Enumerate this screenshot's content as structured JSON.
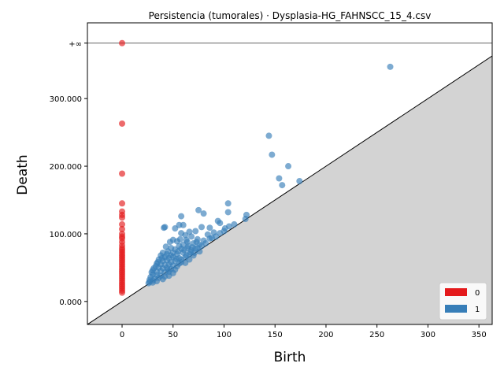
{
  "chart_data": {
    "type": "scatter",
    "title": "Persistencia (tumorales) · Dysplasia-HG_FAHNSCC_15_4.csv",
    "xlabel": "Birth",
    "ylabel": "Death",
    "xlim": [
      -34,
      363
    ],
    "ylim": [
      -34000,
      412000
    ],
    "infinity_value": 382000,
    "infinity_label": "+∞",
    "x_ticks": [
      {
        "value": 0,
        "label": "0"
      },
      {
        "value": 50,
        "label": "50"
      },
      {
        "value": 100,
        "label": "100"
      },
      {
        "value": 150,
        "label": "150"
      },
      {
        "value": 200,
        "label": "200"
      },
      {
        "value": 250,
        "label": "250"
      },
      {
        "value": 300,
        "label": "300"
      },
      {
        "value": 350,
        "label": "350"
      }
    ],
    "y_ticks": [
      {
        "value": 0,
        "label": "0.000"
      },
      {
        "value": 100000,
        "label": "100.000"
      },
      {
        "value": 200000,
        "label": "200.000"
      },
      {
        "value": 300000,
        "label": "300.000"
      }
    ],
    "legend": {
      "position": "lower-right",
      "items": [
        {
          "label": "0",
          "color": "#e41a1c"
        },
        {
          "label": "1",
          "color": "#377eb8"
        }
      ]
    },
    "series": [
      {
        "name": "0",
        "color": "#e41a1c",
        "points": [
          [
            0,
            382000
          ],
          [
            0,
            263000
          ],
          [
            0,
            189000
          ],
          [
            0,
            145000
          ],
          [
            0,
            133000
          ],
          [
            0,
            128000
          ],
          [
            0,
            124000
          ],
          [
            0,
            114000
          ],
          [
            0,
            107000
          ],
          [
            0,
            100000
          ],
          [
            0,
            96000
          ],
          [
            0,
            93000
          ],
          [
            0,
            88000
          ],
          [
            0,
            83000
          ],
          [
            0,
            79000
          ],
          [
            0,
            76000
          ],
          [
            0,
            73000
          ],
          [
            0,
            70000
          ],
          [
            0,
            67000
          ],
          [
            0,
            64000
          ],
          [
            0,
            61000
          ],
          [
            0,
            58000
          ],
          [
            0,
            55000
          ],
          [
            0,
            52000
          ],
          [
            0,
            49000
          ],
          [
            0,
            46000
          ],
          [
            0,
            43000
          ],
          [
            0,
            40000
          ],
          [
            0,
            37000
          ],
          [
            0,
            34000
          ],
          [
            0,
            31000
          ],
          [
            0,
            28000
          ],
          [
            0,
            25000
          ],
          [
            0,
            22000
          ],
          [
            0,
            19000
          ],
          [
            0,
            16000
          ],
          [
            0,
            13000
          ]
        ]
      },
      {
        "name": "1",
        "color": "#377eb8",
        "points": [
          [
            263,
            347000
          ],
          [
            144,
            245000
          ],
          [
            147,
            217000
          ],
          [
            163,
            200000
          ],
          [
            154,
            182000
          ],
          [
            157,
            172000
          ],
          [
            174,
            178000
          ],
          [
            104,
            145000
          ],
          [
            75,
            135000
          ],
          [
            80,
            130000
          ],
          [
            104,
            132000
          ],
          [
            58,
            126000
          ],
          [
            122,
            128000
          ],
          [
            121,
            122000
          ],
          [
            56,
            113000
          ],
          [
            60,
            113000
          ],
          [
            42,
            110000
          ],
          [
            41,
            109000
          ],
          [
            52,
            108000
          ],
          [
            78,
            110000
          ],
          [
            86,
            109000
          ],
          [
            105,
            111000
          ],
          [
            110,
            114000
          ],
          [
            94,
            119000
          ],
          [
            96,
            116000
          ],
          [
            101,
            108000
          ],
          [
            90,
            102000
          ],
          [
            72,
            104000
          ],
          [
            66,
            103000
          ],
          [
            58,
            101000
          ],
          [
            62,
            98000
          ],
          [
            68,
            96000
          ],
          [
            84,
            99000
          ],
          [
            88,
            94000
          ],
          [
            92,
            96000
          ],
          [
            100,
            104000
          ],
          [
            74,
            92000
          ],
          [
            80,
            90000
          ],
          [
            50,
            91000
          ],
          [
            54,
            89000
          ],
          [
            47,
            88000
          ],
          [
            64,
            88000
          ],
          [
            70,
            86000
          ],
          [
            76,
            84000
          ],
          [
            82,
            86000
          ],
          [
            60,
            84000
          ],
          [
            56,
            82000
          ],
          [
            43,
            81000
          ],
          [
            48,
            79000
          ],
          [
            52,
            77000
          ],
          [
            58,
            78000
          ],
          [
            64,
            79000
          ],
          [
            68,
            76000
          ],
          [
            72,
            78000
          ],
          [
            76,
            74000
          ],
          [
            40,
            72000
          ],
          [
            44,
            70000
          ],
          [
            50,
            72000
          ],
          [
            54,
            70000
          ],
          [
            60,
            72000
          ],
          [
            66,
            70000
          ],
          [
            70,
            68000
          ],
          [
            38,
            68000
          ],
          [
            42,
            66000
          ],
          [
            46,
            64000
          ],
          [
            50,
            66000
          ],
          [
            56,
            64000
          ],
          [
            62,
            65000
          ],
          [
            66,
            62000
          ],
          [
            36,
            62000
          ],
          [
            40,
            60000
          ],
          [
            44,
            61000
          ],
          [
            48,
            58000
          ],
          [
            52,
            60000
          ],
          [
            58,
            58000
          ],
          [
            62,
            57000
          ],
          [
            34,
            56000
          ],
          [
            38,
            55000
          ],
          [
            42,
            54000
          ],
          [
            46,
            55000
          ],
          [
            50,
            53000
          ],
          [
            54,
            52000
          ],
          [
            33,
            52000
          ],
          [
            36,
            50000
          ],
          [
            40,
            49000
          ],
          [
            44,
            50000
          ],
          [
            48,
            48000
          ],
          [
            52,
            47000
          ],
          [
            56,
            56000
          ],
          [
            30,
            46000
          ],
          [
            34,
            44000
          ],
          [
            38,
            45000
          ],
          [
            42,
            43000
          ],
          [
            46,
            44000
          ],
          [
            50,
            42000
          ],
          [
            30,
            40000
          ],
          [
            34,
            39000
          ],
          [
            38,
            38000
          ],
          [
            42,
            37000
          ],
          [
            46,
            38000
          ],
          [
            28,
            36000
          ],
          [
            32,
            34000
          ],
          [
            36,
            35000
          ],
          [
            40,
            33000
          ],
          [
            27,
            32000
          ],
          [
            30,
            31000
          ],
          [
            34,
            30000
          ],
          [
            27,
            29000
          ],
          [
            30,
            28000
          ],
          [
            26,
            27000
          ],
          [
            45,
            47000
          ],
          [
            58,
            62000
          ],
          [
            63,
            68000
          ],
          [
            67,
            73000
          ],
          [
            71,
            72000
          ],
          [
            74,
            79000
          ],
          [
            78,
            82000
          ],
          [
            55,
            74000
          ],
          [
            48,
            68000
          ],
          [
            53,
            63000
          ],
          [
            61,
            76000
          ],
          [
            65,
            82000
          ],
          [
            69,
            80000
          ],
          [
            73,
            88000
          ],
          [
            86,
            93000
          ],
          [
            96,
            101000
          ],
          [
            57,
            92000
          ],
          [
            63,
            91000
          ],
          [
            45,
            74000
          ],
          [
            39,
            64000
          ],
          [
            35,
            58000
          ],
          [
            31,
            49000
          ],
          [
            29,
            43000
          ]
        ]
      }
    ]
  }
}
